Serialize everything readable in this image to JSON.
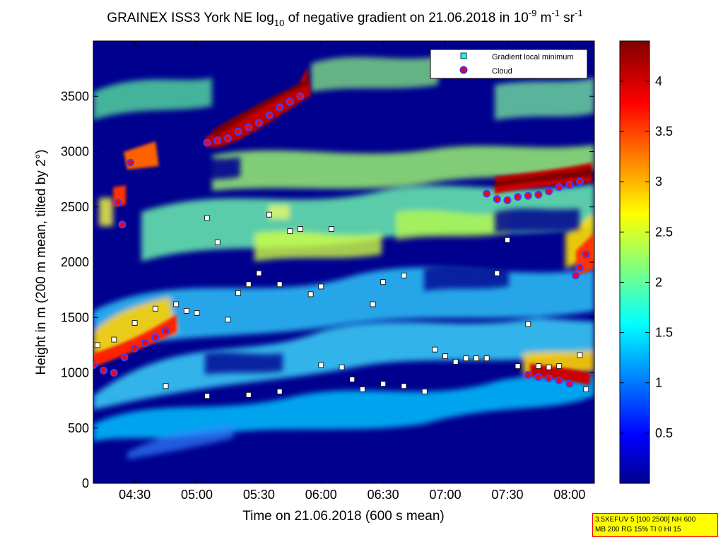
{
  "chart_data": {
    "type": "heatmap",
    "title": {
      "main": "GRAINEX ISS3 York NE log",
      "sub10": "10",
      "mid": " of negative gradient on 21.06.2018 in 10",
      "exp1": "-9",
      "unit1": " m",
      "exp2": "-1",
      "unit2": " sr",
      "exp3": "-1"
    },
    "xlabel": "Time on 21.06.2018 (600 s mean)",
    "ylabel": "Height in m (200 m mean, tilted by 2°)",
    "xlim": [
      "04:10",
      "08:12"
    ],
    "ylim": [
      0,
      4000
    ],
    "x_ticks": [
      "04:30",
      "05:00",
      "05:30",
      "06:00",
      "06:30",
      "07:00",
      "07:30",
      "08:00"
    ],
    "y_ticks": [
      "0",
      "500",
      "1000",
      "1500",
      "2000",
      "2500",
      "3000",
      "3500"
    ],
    "colorbar": {
      "ticks": [
        "0.5",
        "1",
        "1.5",
        "2",
        "2.5",
        "3",
        "3.5",
        "4"
      ],
      "range": [
        0,
        4.4
      ],
      "colormap": "jet"
    },
    "legend": {
      "position": "top-right",
      "entries": [
        {
          "label": "Gradient local minimum",
          "marker": "square",
          "color": "#00ffff"
        },
        {
          "label": "Cloud",
          "marker": "circle",
          "color": "#ff0000"
        }
      ]
    },
    "cloud_series": [
      {
        "x": "04:10",
        "y": 1070
      },
      {
        "x": "04:15",
        "y": 1020
      },
      {
        "x": "04:20",
        "y": 1000
      },
      {
        "x": "04:25",
        "y": 1140
      },
      {
        "x": "04:30",
        "y": 1220
      },
      {
        "x": "04:35",
        "y": 1270
      },
      {
        "x": "04:40",
        "y": 1320
      },
      {
        "x": "04:45",
        "y": 1380
      },
      {
        "x": "04:22",
        "y": 2540
      },
      {
        "x": "04:24",
        "y": 2340
      },
      {
        "x": "04:28",
        "y": 2900
      },
      {
        "x": "05:05",
        "y": 3080
      },
      {
        "x": "05:10",
        "y": 3100
      },
      {
        "x": "05:15",
        "y": 3120
      },
      {
        "x": "05:20",
        "y": 3180
      },
      {
        "x": "05:25",
        "y": 3220
      },
      {
        "x": "05:30",
        "y": 3260
      },
      {
        "x": "05:35",
        "y": 3330
      },
      {
        "x": "05:40",
        "y": 3400
      },
      {
        "x": "05:45",
        "y": 3450
      },
      {
        "x": "05:50",
        "y": 3500
      },
      {
        "x": "07:20",
        "y": 2620
      },
      {
        "x": "07:25",
        "y": 2570
      },
      {
        "x": "07:30",
        "y": 2560
      },
      {
        "x": "07:35",
        "y": 2590
      },
      {
        "x": "07:40",
        "y": 2600
      },
      {
        "x": "07:45",
        "y": 2610
      },
      {
        "x": "07:50",
        "y": 2640
      },
      {
        "x": "07:55",
        "y": 2680
      },
      {
        "x": "08:00",
        "y": 2700
      },
      {
        "x": "08:05",
        "y": 2730
      },
      {
        "x": "07:40",
        "y": 980
      },
      {
        "x": "07:45",
        "y": 960
      },
      {
        "x": "07:50",
        "y": 950
      },
      {
        "x": "07:55",
        "y": 930
      },
      {
        "x": "08:00",
        "y": 900
      },
      {
        "x": "08:03",
        "y": 1880
      },
      {
        "x": "08:05",
        "y": 1950
      },
      {
        "x": "08:08",
        "y": 2070
      }
    ],
    "gradient_min_series": [
      {
        "x": "04:12",
        "y": 1250
      },
      {
        "x": "04:20",
        "y": 1300
      },
      {
        "x": "04:30",
        "y": 1450
      },
      {
        "x": "04:40",
        "y": 1580
      },
      {
        "x": "04:45",
        "y": 880
      },
      {
        "x": "04:50",
        "y": 1620
      },
      {
        "x": "04:55",
        "y": 1560
      },
      {
        "x": "05:00",
        "y": 1540
      },
      {
        "x": "05:05",
        "y": 2400
      },
      {
        "x": "05:05",
        "y": 790
      },
      {
        "x": "05:10",
        "y": 2180
      },
      {
        "x": "05:15",
        "y": 1480
      },
      {
        "x": "05:20",
        "y": 1720
      },
      {
        "x": "05:25",
        "y": 1800
      },
      {
        "x": "05:25",
        "y": 800
      },
      {
        "x": "05:30",
        "y": 1900
      },
      {
        "x": "05:35",
        "y": 2430
      },
      {
        "x": "05:40",
        "y": 1800
      },
      {
        "x": "05:40",
        "y": 830
      },
      {
        "x": "05:45",
        "y": 2280
      },
      {
        "x": "05:50",
        "y": 2300
      },
      {
        "x": "05:55",
        "y": 1710
      },
      {
        "x": "06:00",
        "y": 1780
      },
      {
        "x": "06:00",
        "y": 1070
      },
      {
        "x": "06:05",
        "y": 2300
      },
      {
        "x": "06:10",
        "y": 1050
      },
      {
        "x": "06:15",
        "y": 940
      },
      {
        "x": "06:20",
        "y": 850
      },
      {
        "x": "06:25",
        "y": 1620
      },
      {
        "x": "06:30",
        "y": 1820
      },
      {
        "x": "06:30",
        "y": 900
      },
      {
        "x": "06:40",
        "y": 1880
      },
      {
        "x": "06:40",
        "y": 880
      },
      {
        "x": "06:50",
        "y": 830
      },
      {
        "x": "06:55",
        "y": 1210
      },
      {
        "x": "07:00",
        "y": 1150
      },
      {
        "x": "07:05",
        "y": 1100
      },
      {
        "x": "07:10",
        "y": 1130
      },
      {
        "x": "07:15",
        "y": 1130
      },
      {
        "x": "07:20",
        "y": 1130
      },
      {
        "x": "07:25",
        "y": 1900
      },
      {
        "x": "07:30",
        "y": 2200
      },
      {
        "x": "07:35",
        "y": 1060
      },
      {
        "x": "07:40",
        "y": 1440
      },
      {
        "x": "07:45",
        "y": 1060
      },
      {
        "x": "07:50",
        "y": 1050
      },
      {
        "x": "07:55",
        "y": 1060
      },
      {
        "x": "08:05",
        "y": 1160
      },
      {
        "x": "08:08",
        "y": 850
      }
    ]
  },
  "info_box": {
    "line1": "3.5XEFUV 5 [100 2500] NH 600",
    "line2": "MB 200 RG 15% TI 0 HI 15"
  }
}
